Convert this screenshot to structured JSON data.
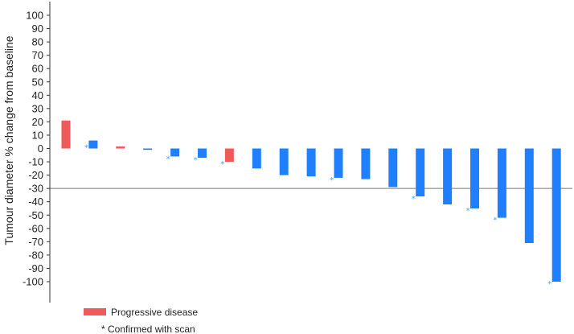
{
  "chart_data": {
    "type": "bar",
    "ylabel": "Tumour diameter % change from baseline",
    "ylim": [
      -110,
      110
    ],
    "yticks": [
      100,
      90,
      80,
      70,
      60,
      50,
      40,
      30,
      20,
      10,
      0,
      -10,
      -20,
      -30,
      -40,
      -50,
      -60,
      -70,
      -80,
      -90,
      -100
    ],
    "reference_line": -30,
    "grid": false,
    "series": [
      {
        "values": [
          21,
          6,
          1.5,
          -1,
          -6,
          -7,
          -10,
          -15,
          -20,
          -21,
          -22,
          -23,
          -29,
          -36,
          -42,
          -45,
          -52,
          -71,
          -100
        ],
        "progressive": [
          true,
          false,
          true,
          false,
          false,
          false,
          true,
          false,
          false,
          false,
          false,
          false,
          false,
          false,
          false,
          false,
          false,
          false,
          false
        ],
        "confirmed_with_scan": [
          false,
          true,
          false,
          false,
          true,
          true,
          true,
          false,
          false,
          false,
          true,
          false,
          false,
          true,
          false,
          true,
          true,
          false,
          true
        ]
      }
    ],
    "legend": [
      {
        "label": "Progressive disease",
        "marker": "■"
      },
      {
        "label": "Confirmed with scan",
        "marker": "*"
      }
    ],
    "colors": {
      "response": "#1f7fff",
      "progressive": "#f05a5a",
      "asterisk": "#4aa3ff",
      "reference_line": "#777777",
      "axis": "#333333"
    }
  }
}
